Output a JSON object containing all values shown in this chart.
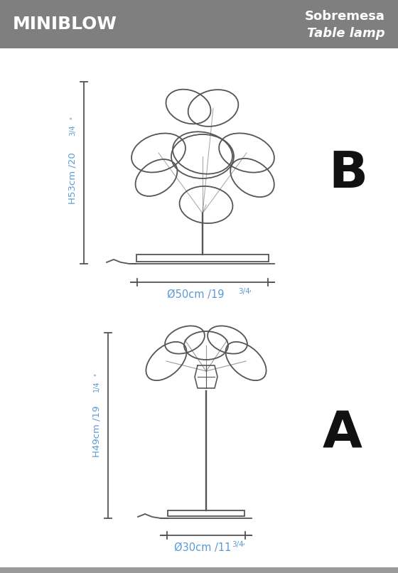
{
  "bg_color": "#ffffff",
  "header_bg": "#7f7f7f",
  "header_text_left": "MINIBLOW",
  "header_text_right1": "Sobremesa",
  "header_text_right2": "Table lamp",
  "header_text_color": "#ffffff",
  "dim_color": "#5b9bd5",
  "line_color": "#555555",
  "label_B": "B",
  "label_A": "A",
  "lamp_B_height_label": "H53cm /20",
  "lamp_B_height_super": "3/4",
  "lamp_B_width_label": "Ø50cm /19",
  "lamp_B_width_super": "3/4",
  "lamp_A_height_label": "H49cm /19",
  "lamp_A_height_super": "1/4",
  "lamp_A_width_label": "Ø30cm /11",
  "lamp_A_width_super": "3/4",
  "footer_color": "#999999"
}
